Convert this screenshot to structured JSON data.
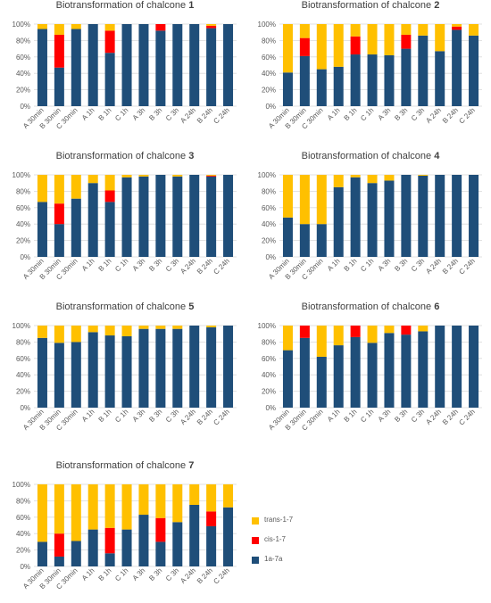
{
  "chart_data": [
    {
      "type": "bar",
      "stacked": true,
      "title_prefix": "Biotransformation of chalcone ",
      "title_number": "1",
      "categories": [
        "A 30min",
        "B 30min",
        "C 30min",
        "A 1h",
        "B 1h",
        "C 1h",
        "A 3h",
        "B 3h",
        "C 3h",
        "A 24h",
        "B 24h",
        "C 24h"
      ],
      "series": [
        {
          "name": "1a-7a",
          "color": "#1f4e79",
          "values": [
            94,
            47,
            94,
            100,
            65,
            100,
            100,
            92,
            100,
            100,
            95,
            100
          ]
        },
        {
          "name": "cis-1-7",
          "color": "#ff0000",
          "values": [
            0,
            40,
            0,
            0,
            27,
            0,
            0,
            8,
            0,
            0,
            3,
            0
          ]
        },
        {
          "name": "trans-1-7",
          "color": "#ffc000",
          "values": [
            6,
            13,
            6,
            0,
            8,
            0,
            0,
            0,
            0,
            0,
            2,
            0
          ]
        }
      ],
      "ylim": [
        0,
        100
      ],
      "yticks": [
        "0%",
        "20%",
        "40%",
        "60%",
        "80%",
        "100%"
      ]
    },
    {
      "type": "bar",
      "stacked": true,
      "title_prefix": "Biotransformation of chalcone ",
      "title_number": "2",
      "categories": [
        "A 30min",
        "B 30min",
        "C 30min",
        "A 1h",
        "B 1h",
        "C 1h",
        "A 3h",
        "B 3h",
        "C 3h",
        "A 24h",
        "B 24h",
        "C 24h"
      ],
      "series": [
        {
          "name": "1a-7a",
          "color": "#1f4e79",
          "values": [
            41,
            61,
            45,
            48,
            63,
            63,
            62,
            70,
            86,
            67,
            93,
            86
          ]
        },
        {
          "name": "cis-1-7",
          "color": "#ff0000",
          "values": [
            0,
            22,
            0,
            0,
            22,
            0,
            0,
            17,
            0,
            0,
            4,
            0
          ]
        },
        {
          "name": "trans-1-7",
          "color": "#ffc000",
          "values": [
            59,
            17,
            55,
            52,
            15,
            37,
            38,
            13,
            14,
            33,
            3,
            14
          ]
        }
      ],
      "ylim": [
        0,
        100
      ],
      "yticks": [
        "0%",
        "20%",
        "40%",
        "60%",
        "80%",
        "100%"
      ]
    },
    {
      "type": "bar",
      "stacked": true,
      "title_prefix": "Biotransformation of chalcone ",
      "title_number": "3",
      "categories": [
        "A 30min",
        "B 30min",
        "C 30min",
        "A 1h",
        "B 1h",
        "C 1h",
        "A 3h",
        "B 3h",
        "C 3h",
        "A 24h",
        "B 24h",
        "C 24h"
      ],
      "series": [
        {
          "name": "1a-7a",
          "color": "#1f4e79",
          "values": [
            67,
            40,
            71,
            90,
            67,
            97,
            98,
            100,
            98,
            100,
            98,
            100
          ]
        },
        {
          "name": "cis-1-7",
          "color": "#ff0000",
          "values": [
            0,
            25,
            0,
            0,
            14,
            0,
            0,
            0,
            0,
            0,
            1,
            0
          ]
        },
        {
          "name": "trans-1-7",
          "color": "#ffc000",
          "values": [
            33,
            35,
            29,
            10,
            19,
            3,
            2,
            0,
            2,
            0,
            1,
            0
          ]
        }
      ],
      "ylim": [
        0,
        100
      ],
      "yticks": [
        "0%",
        "20%",
        "40%",
        "60%",
        "80%",
        "100%"
      ]
    },
    {
      "type": "bar",
      "stacked": true,
      "title_prefix": "Biotransformation of chalcone ",
      "title_number": "4",
      "categories": [
        "A 30min",
        "B 30min",
        "C 30min",
        "A 1h",
        "B 1h",
        "C 1h",
        "A 3h",
        "B 3h",
        "C 3h",
        "A 24h",
        "B 24h",
        "C 24h"
      ],
      "series": [
        {
          "name": "1a-7a",
          "color": "#1f4e79",
          "values": [
            48,
            40,
            40,
            85,
            97,
            90,
            93,
            100,
            99,
            100,
            100,
            100
          ]
        },
        {
          "name": "cis-1-7",
          "color": "#ff0000",
          "values": [
            0,
            0,
            0,
            0,
            0,
            0,
            0,
            0,
            0,
            0,
            0,
            0
          ]
        },
        {
          "name": "trans-1-7",
          "color": "#ffc000",
          "values": [
            52,
            60,
            60,
            15,
            3,
            10,
            7,
            0,
            1,
            0,
            0,
            0
          ]
        }
      ],
      "ylim": [
        0,
        100
      ],
      "yticks": [
        "0%",
        "20%",
        "40%",
        "60%",
        "80%",
        "100%"
      ]
    },
    {
      "type": "bar",
      "stacked": true,
      "title_prefix": "Biotransformation of chalcone ",
      "title_number": "5",
      "categories": [
        "A 30min",
        "B 30min",
        "C 30min",
        "A 1h",
        "B 1h",
        "C 1h",
        "A 3h",
        "B 3h",
        "C 3h",
        "A 24h",
        "B 24h",
        "C 24h"
      ],
      "series": [
        {
          "name": "1a-7a",
          "color": "#1f4e79",
          "values": [
            85,
            79,
            80,
            92,
            88,
            87,
            96,
            96,
            96,
            100,
            98,
            100
          ]
        },
        {
          "name": "cis-1-7",
          "color": "#ff0000",
          "values": [
            0,
            0,
            0,
            0,
            0,
            0,
            0,
            0,
            0,
            0,
            0,
            0
          ]
        },
        {
          "name": "trans-1-7",
          "color": "#ffc000",
          "values": [
            15,
            21,
            20,
            8,
            12,
            13,
            4,
            4,
            4,
            0,
            2,
            0
          ]
        }
      ],
      "ylim": [
        0,
        100
      ],
      "yticks": [
        "0%",
        "20%",
        "40%",
        "60%",
        "80%",
        "100%"
      ]
    },
    {
      "type": "bar",
      "stacked": true,
      "title_prefix": "Biotransformation of chalcone ",
      "title_number": "6",
      "categories": [
        "A 30min",
        "B 30min",
        "C 30min",
        "A 1h",
        "B 1h",
        "C 1h",
        "A 3h",
        "B 3h",
        "C 3h",
        "A 24h",
        "B 24h",
        "C 24h"
      ],
      "series": [
        {
          "name": "1a-7a",
          "color": "#1f4e79",
          "values": [
            70,
            85,
            62,
            76,
            86,
            79,
            91,
            89,
            93,
            100,
            100,
            100
          ]
        },
        {
          "name": "cis-1-7",
          "color": "#ff0000",
          "values": [
            0,
            15,
            0,
            0,
            14,
            0,
            0,
            11,
            0,
            0,
            0,
            0
          ]
        },
        {
          "name": "trans-1-7",
          "color": "#ffc000",
          "values": [
            30,
            0,
            38,
            24,
            0,
            21,
            9,
            0,
            7,
            0,
            0,
            0
          ]
        }
      ],
      "ylim": [
        0,
        100
      ],
      "yticks": [
        "0%",
        "20%",
        "40%",
        "60%",
        "80%",
        "100%"
      ]
    },
    {
      "type": "bar",
      "stacked": true,
      "title_prefix": "Biotransformation of chalcone ",
      "title_number": "7",
      "categories": [
        "A 30min",
        "B 30min",
        "C 30min",
        "A 1h",
        "B 1h",
        "C 1h",
        "A 3h",
        "B 3h",
        "C 3h",
        "A 24h",
        "B 24h",
        "C 24h"
      ],
      "series": [
        {
          "name": "1a-7a",
          "color": "#1f4e79",
          "values": [
            30,
            12,
            31,
            45,
            16,
            45,
            63,
            30,
            54,
            75,
            49,
            72
          ]
        },
        {
          "name": "cis-1-7",
          "color": "#ff0000",
          "values": [
            0,
            28,
            0,
            0,
            31,
            0,
            0,
            29,
            0,
            0,
            18,
            0
          ]
        },
        {
          "name": "trans-1-7",
          "color": "#ffc000",
          "values": [
            70,
            60,
            69,
            55,
            53,
            55,
            37,
            41,
            46,
            25,
            33,
            28
          ]
        }
      ],
      "ylim": [
        0,
        100
      ],
      "yticks": [
        "0%",
        "20%",
        "40%",
        "60%",
        "80%",
        "100%"
      ]
    }
  ],
  "legend": [
    {
      "label": "trans-1-7",
      "color": "#ffc000"
    },
    {
      "label": "cis-1-7",
      "color": "#ff0000"
    },
    {
      "label": "1a-7a",
      "color": "#1f4e79"
    }
  ]
}
